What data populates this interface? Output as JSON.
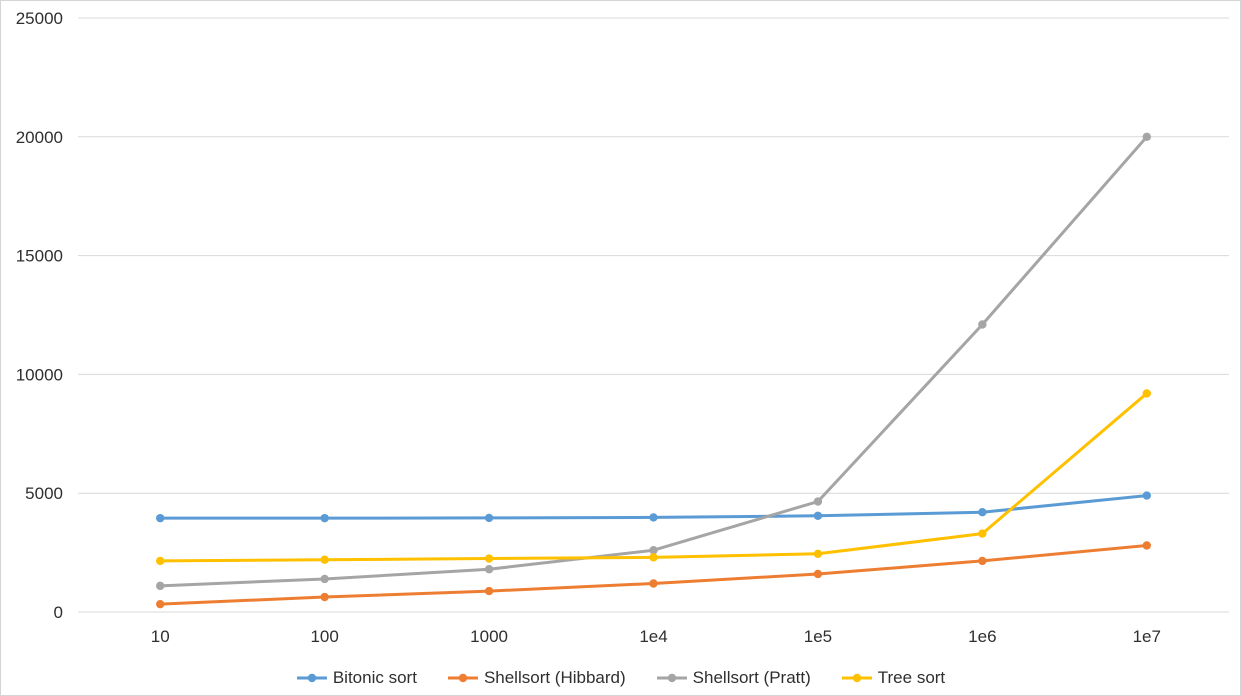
{
  "chart_data": {
    "type": "line",
    "title": "",
    "xlabel": "",
    "ylabel": "",
    "categories": [
      "10",
      "100",
      "1000",
      "1e4",
      "1e5",
      "1e6",
      "1e7"
    ],
    "series": [
      {
        "name": "Bitonic sort",
        "color": "#5B9BD5",
        "values": [
          3950,
          3950,
          3960,
          3980,
          4050,
          4200,
          4900
        ]
      },
      {
        "name": "Shellsort (Hibbard)",
        "color": "#ED7D31",
        "values": [
          330,
          630,
          880,
          1200,
          1600,
          2150,
          2800
        ]
      },
      {
        "name": "Shellsort (Pratt)",
        "color": "#A5A5A5",
        "values": [
          1100,
          1390,
          1800,
          2600,
          4650,
          12100,
          20000
        ]
      },
      {
        "name": "Tree sort",
        "color": "#FFC000",
        "values": [
          2150,
          2200,
          2250,
          2300,
          2450,
          3300,
          9200
        ]
      }
    ],
    "ylim": [
      0,
      25000
    ],
    "y_ticks": [
      0,
      5000,
      10000,
      15000,
      20000,
      25000
    ],
    "grid": true,
    "legend_position": "bottom"
  },
  "style_colors": {
    "gridline": "#D9D9D9",
    "tick_text": "#2f2f2f",
    "background": "#FFFFFF",
    "frame_border": "#D5D5D5"
  }
}
